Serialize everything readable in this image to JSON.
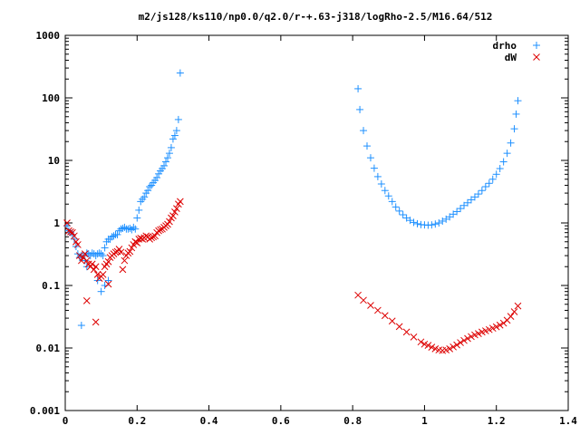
{
  "chart_data": {
    "type": "scatter",
    "title": "m2/js128/ks110/np0.0/q2.0/r-+.63-j318/logRho-2.5/M16.64/512",
    "xlabel": "",
    "ylabel": "",
    "xlim": [
      0,
      1.4
    ],
    "ylim": [
      0.001,
      1000
    ],
    "yscale": "log",
    "x_ticks": [
      "0",
      "0.2",
      "0.4",
      "0.6",
      "0.8",
      "1",
      "1.2",
      "1.4"
    ],
    "x_tick_values": [
      0,
      0.2,
      0.4,
      0.6,
      0.8,
      1.0,
      1.2,
      1.4
    ],
    "y_ticks": [
      "0.001",
      "0.01",
      "0.1",
      "1",
      "10",
      "100",
      "1000"
    ],
    "y_tick_values": [
      0.001,
      0.01,
      0.1,
      1,
      10,
      100,
      1000
    ],
    "grid": false,
    "legend_position": "top-right",
    "series": [
      {
        "name": "drho",
        "marker": "plus",
        "color": "#1e90ff",
        "x": [
          0.005,
          0.01,
          0.015,
          0.02,
          0.025,
          0.03,
          0.035,
          0.04,
          0.045,
          0.05,
          0.055,
          0.06,
          0.065,
          0.07,
          0.075,
          0.08,
          0.085,
          0.09,
          0.095,
          0.1,
          0.105,
          0.11,
          0.115,
          0.12,
          0.125,
          0.13,
          0.135,
          0.14,
          0.145,
          0.15,
          0.155,
          0.16,
          0.165,
          0.17,
          0.175,
          0.18,
          0.185,
          0.19,
          0.195,
          0.2,
          0.205,
          0.21,
          0.215,
          0.22,
          0.225,
          0.23,
          0.235,
          0.24,
          0.245,
          0.25,
          0.255,
          0.26,
          0.265,
          0.27,
          0.275,
          0.28,
          0.285,
          0.29,
          0.295,
          0.3,
          0.305,
          0.31,
          0.315,
          0.32,
          0.045,
          0.06,
          0.09,
          0.1,
          0.11,
          0.12,
          0.815,
          0.82,
          0.83,
          0.84,
          0.85,
          0.86,
          0.87,
          0.88,
          0.89,
          0.9,
          0.91,
          0.92,
          0.93,
          0.94,
          0.95,
          0.96,
          0.97,
          0.98,
          0.99,
          1.0,
          1.01,
          1.02,
          1.03,
          1.04,
          1.05,
          1.06,
          1.07,
          1.08,
          1.09,
          1.1,
          1.11,
          1.12,
          1.13,
          1.14,
          1.15,
          1.16,
          1.17,
          1.18,
          1.19,
          1.2,
          1.21,
          1.22,
          1.23,
          1.24,
          1.25,
          1.255,
          1.26
        ],
        "y": [
          0.9,
          0.75,
          0.7,
          0.65,
          0.55,
          0.42,
          0.32,
          0.28,
          0.3,
          0.3,
          0.25,
          0.33,
          0.32,
          0.3,
          0.33,
          0.32,
          0.3,
          0.32,
          0.33,
          0.32,
          0.3,
          0.4,
          0.5,
          0.55,
          0.55,
          0.6,
          0.62,
          0.65,
          0.65,
          0.75,
          0.8,
          0.82,
          0.85,
          0.8,
          0.8,
          0.82,
          0.78,
          0.85,
          0.8,
          1.2,
          1.6,
          2.2,
          2.4,
          2.6,
          3.0,
          3.3,
          3.8,
          4.0,
          4.4,
          4.8,
          5.3,
          6.1,
          6.8,
          7.4,
          8.2,
          9.5,
          11,
          13,
          16,
          22,
          25,
          30,
          45,
          250,
          0.023,
          0.2,
          0.12,
          0.08,
          0.1,
          0.12,
          140,
          65,
          30,
          17,
          11,
          7.5,
          5.5,
          4.2,
          3.3,
          2.7,
          2.2,
          1.8,
          1.55,
          1.35,
          1.2,
          1.1,
          1.02,
          0.97,
          0.94,
          0.93,
          0.92,
          0.93,
          0.96,
          1.0,
          1.07,
          1.15,
          1.25,
          1.38,
          1.52,
          1.7,
          1.9,
          2.1,
          2.35,
          2.6,
          2.9,
          3.3,
          3.8,
          4.3,
          5.0,
          6.0,
          7.4,
          9.5,
          13,
          19,
          32,
          55,
          90
        ]
      },
      {
        "name": "dW",
        "marker": "cross",
        "color": "#dd0000",
        "x": [
          0.005,
          0.01,
          0.015,
          0.02,
          0.025,
          0.03,
          0.035,
          0.04,
          0.045,
          0.05,
          0.055,
          0.06,
          0.065,
          0.07,
          0.075,
          0.08,
          0.085,
          0.09,
          0.095,
          0.1,
          0.105,
          0.11,
          0.115,
          0.12,
          0.125,
          0.13,
          0.135,
          0.14,
          0.145,
          0.15,
          0.155,
          0.16,
          0.165,
          0.17,
          0.175,
          0.18,
          0.185,
          0.19,
          0.195,
          0.2,
          0.205,
          0.21,
          0.215,
          0.22,
          0.225,
          0.23,
          0.235,
          0.24,
          0.245,
          0.25,
          0.255,
          0.26,
          0.265,
          0.27,
          0.275,
          0.28,
          0.285,
          0.29,
          0.295,
          0.3,
          0.305,
          0.31,
          0.315,
          0.32,
          0.085,
          0.12,
          0.06,
          0.815,
          0.83,
          0.85,
          0.87,
          0.89,
          0.91,
          0.93,
          0.95,
          0.97,
          0.99,
          1.0,
          1.01,
          1.02,
          1.03,
          1.04,
          1.05,
          1.06,
          1.07,
          1.08,
          1.09,
          1.1,
          1.11,
          1.12,
          1.13,
          1.14,
          1.15,
          1.16,
          1.17,
          1.18,
          1.19,
          1.2,
          1.21,
          1.22,
          1.23,
          1.24,
          1.25,
          1.26
        ],
        "y": [
          1.0,
          0.75,
          0.72,
          0.7,
          0.62,
          0.5,
          0.45,
          0.3,
          0.25,
          0.28,
          0.32,
          0.25,
          0.22,
          0.2,
          0.22,
          0.18,
          0.2,
          0.15,
          0.13,
          0.14,
          0.15,
          0.2,
          0.22,
          0.24,
          0.28,
          0.3,
          0.32,
          0.34,
          0.35,
          0.38,
          0.34,
          0.18,
          0.25,
          0.3,
          0.33,
          0.35,
          0.4,
          0.45,
          0.5,
          0.48,
          0.55,
          0.57,
          0.55,
          0.58,
          0.62,
          0.6,
          0.55,
          0.58,
          0.6,
          0.62,
          0.7,
          0.75,
          0.78,
          0.8,
          0.85,
          0.9,
          0.95,
          1.05,
          1.2,
          1.3,
          1.5,
          1.7,
          2.0,
          2.2,
          0.026,
          0.105,
          0.057,
          0.07,
          0.058,
          0.048,
          0.04,
          0.033,
          0.027,
          0.022,
          0.018,
          0.015,
          0.0125,
          0.0115,
          0.011,
          0.0103,
          0.0097,
          0.0093,
          0.0091,
          0.0093,
          0.0097,
          0.0104,
          0.0112,
          0.0122,
          0.0132,
          0.0142,
          0.0152,
          0.0162,
          0.017,
          0.018,
          0.0188,
          0.0197,
          0.0207,
          0.0218,
          0.0232,
          0.025,
          0.0278,
          0.032,
          0.038,
          0.047
        ]
      }
    ]
  }
}
